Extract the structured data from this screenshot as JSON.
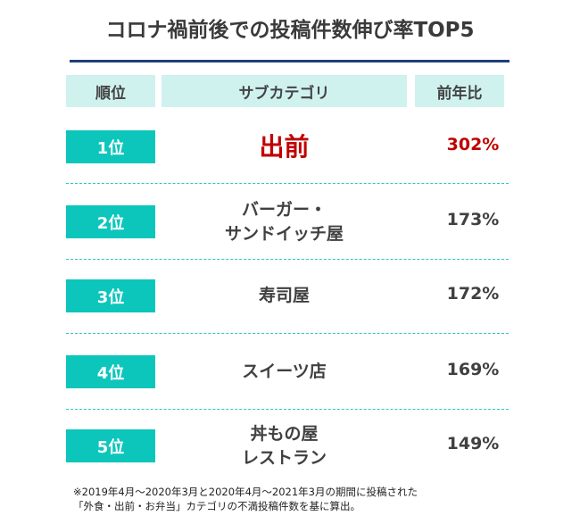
{
  "title": "コロナ禍前後での投稿件数伸び率TOP5",
  "header": {
    "rank": "順位",
    "category": "サブカテゴリ",
    "ratio": "前年比"
  },
  "rows": [
    {
      "rank": "1位",
      "category": [
        "出前"
      ],
      "ratio": "302%"
    },
    {
      "rank": "2位",
      "category": [
        "バーガー・",
        "サンドイッチ屋"
      ],
      "ratio": "173%"
    },
    {
      "rank": "3位",
      "category": [
        "寿司屋"
      ],
      "ratio": "172%"
    },
    {
      "rank": "4位",
      "category": [
        "スイーツ店"
      ],
      "ratio": "169%"
    },
    {
      "rank": "5位",
      "category": [
        "丼もの屋",
        "レストラン"
      ],
      "ratio": "149%"
    }
  ],
  "footnote": [
    "※2019年4月～2020年3月と2020年4月～2021年3月の期間に投稿された",
    "「外食・出前・お弁当」カテゴリの不満投稿件数を基に算出。"
  ],
  "colors": {
    "accent": "#0cc6bc",
    "highlight": "#c00000",
    "rule": "#1f3f7a",
    "header_bg": "#cff2ef"
  }
}
